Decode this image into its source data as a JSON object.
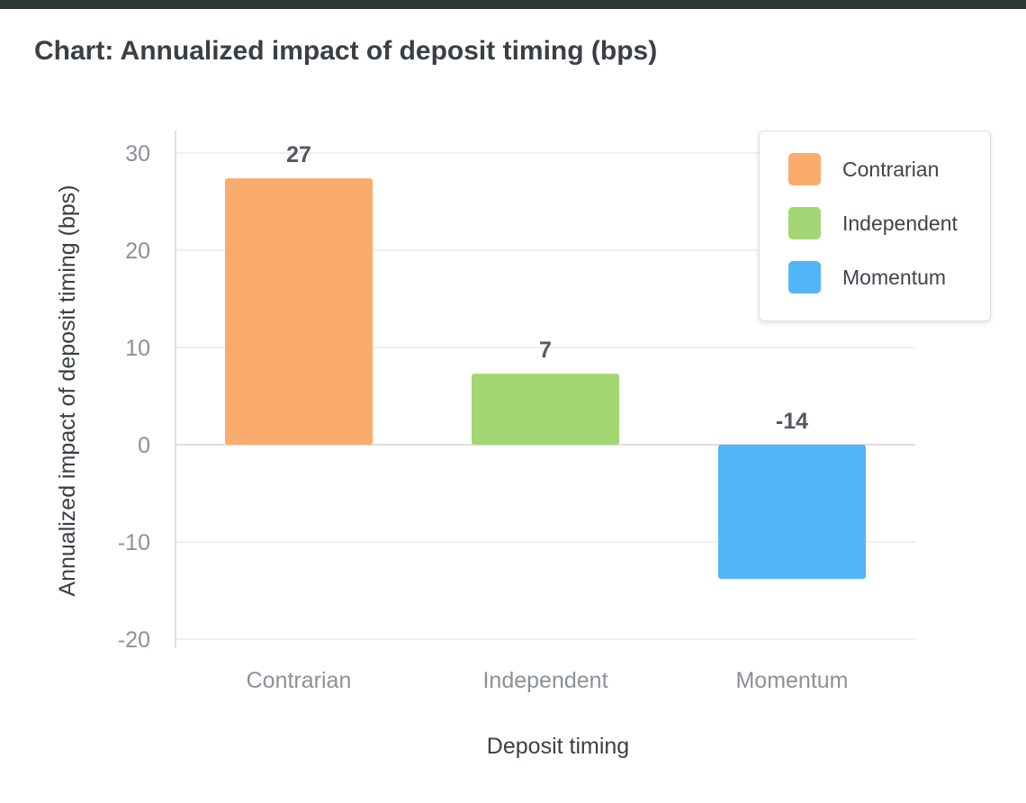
{
  "title": "Chart: Annualized impact of deposit timing (bps)",
  "chart_data": {
    "type": "bar",
    "categories": [
      "Contrarian",
      "Independent",
      "Momentum"
    ],
    "values": [
      27.4,
      7.3,
      -13.8
    ],
    "data_labels": [
      "27",
      "7",
      "-14"
    ],
    "colors": [
      "#f9ac6b",
      "#a2d672",
      "#52b5f8"
    ],
    "xlabel": "Deposit timing",
    "ylabel": "Annualized impact of deposit timing (bps)",
    "ylim": [
      -20,
      30
    ],
    "yticks": [
      30,
      20,
      10,
      0,
      -10,
      -20
    ],
    "grid": true,
    "legend": {
      "placement": "top-right",
      "entries": [
        "Contrarian",
        "Independent",
        "Momentum"
      ]
    }
  }
}
